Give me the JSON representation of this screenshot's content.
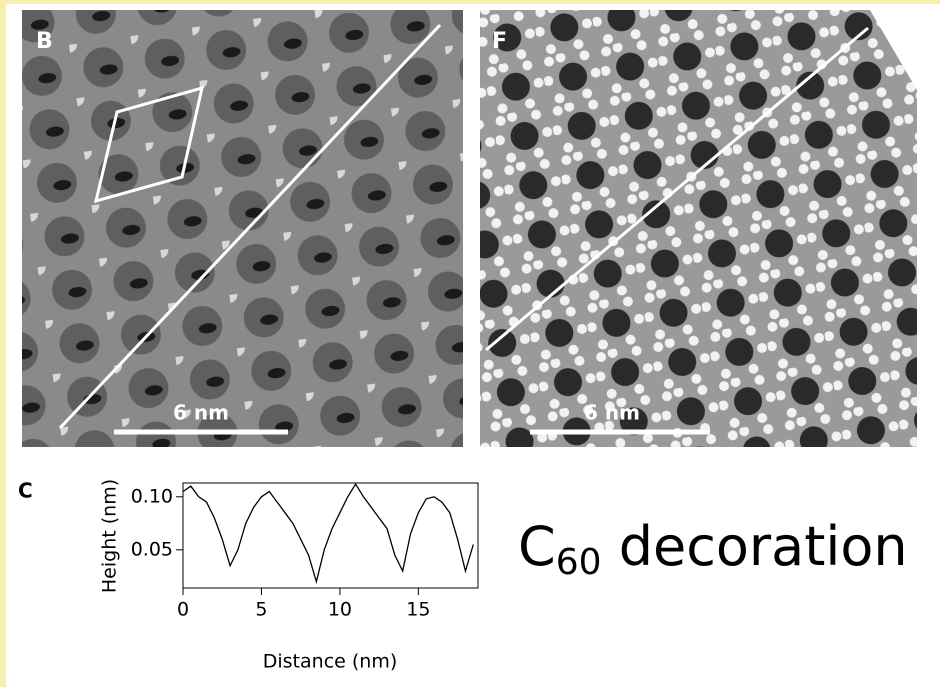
{
  "panels": [
    {
      "label": "B",
      "scale_bar": "6 nm"
    },
    {
      "label": "F",
      "scale_bar": "6 nm"
    }
  ],
  "chart_data": {
    "type": "line",
    "label": "C",
    "y_label": "Height (nm)",
    "x_label": "Distance (nm)",
    "x": [
      0,
      0.5,
      1,
      1.5,
      2,
      2.5,
      3,
      3.5,
      4,
      4.5,
      5,
      5.5,
      6,
      6.5,
      7,
      7.5,
      8,
      8.5,
      9,
      9.5,
      10,
      10.5,
      11,
      11.5,
      12,
      12.5,
      13,
      13.5,
      14,
      14.5,
      15,
      15.5,
      16,
      16.5,
      17,
      17.5,
      18,
      18.5
    ],
    "values": [
      0.105,
      0.11,
      0.1,
      0.095,
      0.08,
      0.06,
      0.035,
      0.05,
      0.075,
      0.09,
      0.1,
      0.105,
      0.095,
      0.085,
      0.075,
      0.06,
      0.045,
      0.02,
      0.05,
      0.07,
      0.085,
      0.1,
      0.112,
      0.1,
      0.09,
      0.08,
      0.07,
      0.045,
      0.03,
      0.065,
      0.085,
      0.098,
      0.1,
      0.095,
      0.085,
      0.06,
      0.03,
      0.055
    ],
    "color": "#000000",
    "xlim": [
      0,
      18.8
    ],
    "ylim": [
      0.014,
      0.113
    ],
    "xticks": [
      0,
      5,
      10,
      15
    ],
    "yticks": [
      {
        "value": 0.1,
        "label": "0.10"
      },
      0.05
    ]
  },
  "caption": {
    "text": "C",
    "subscript": "60",
    "rest": " decoration"
  }
}
